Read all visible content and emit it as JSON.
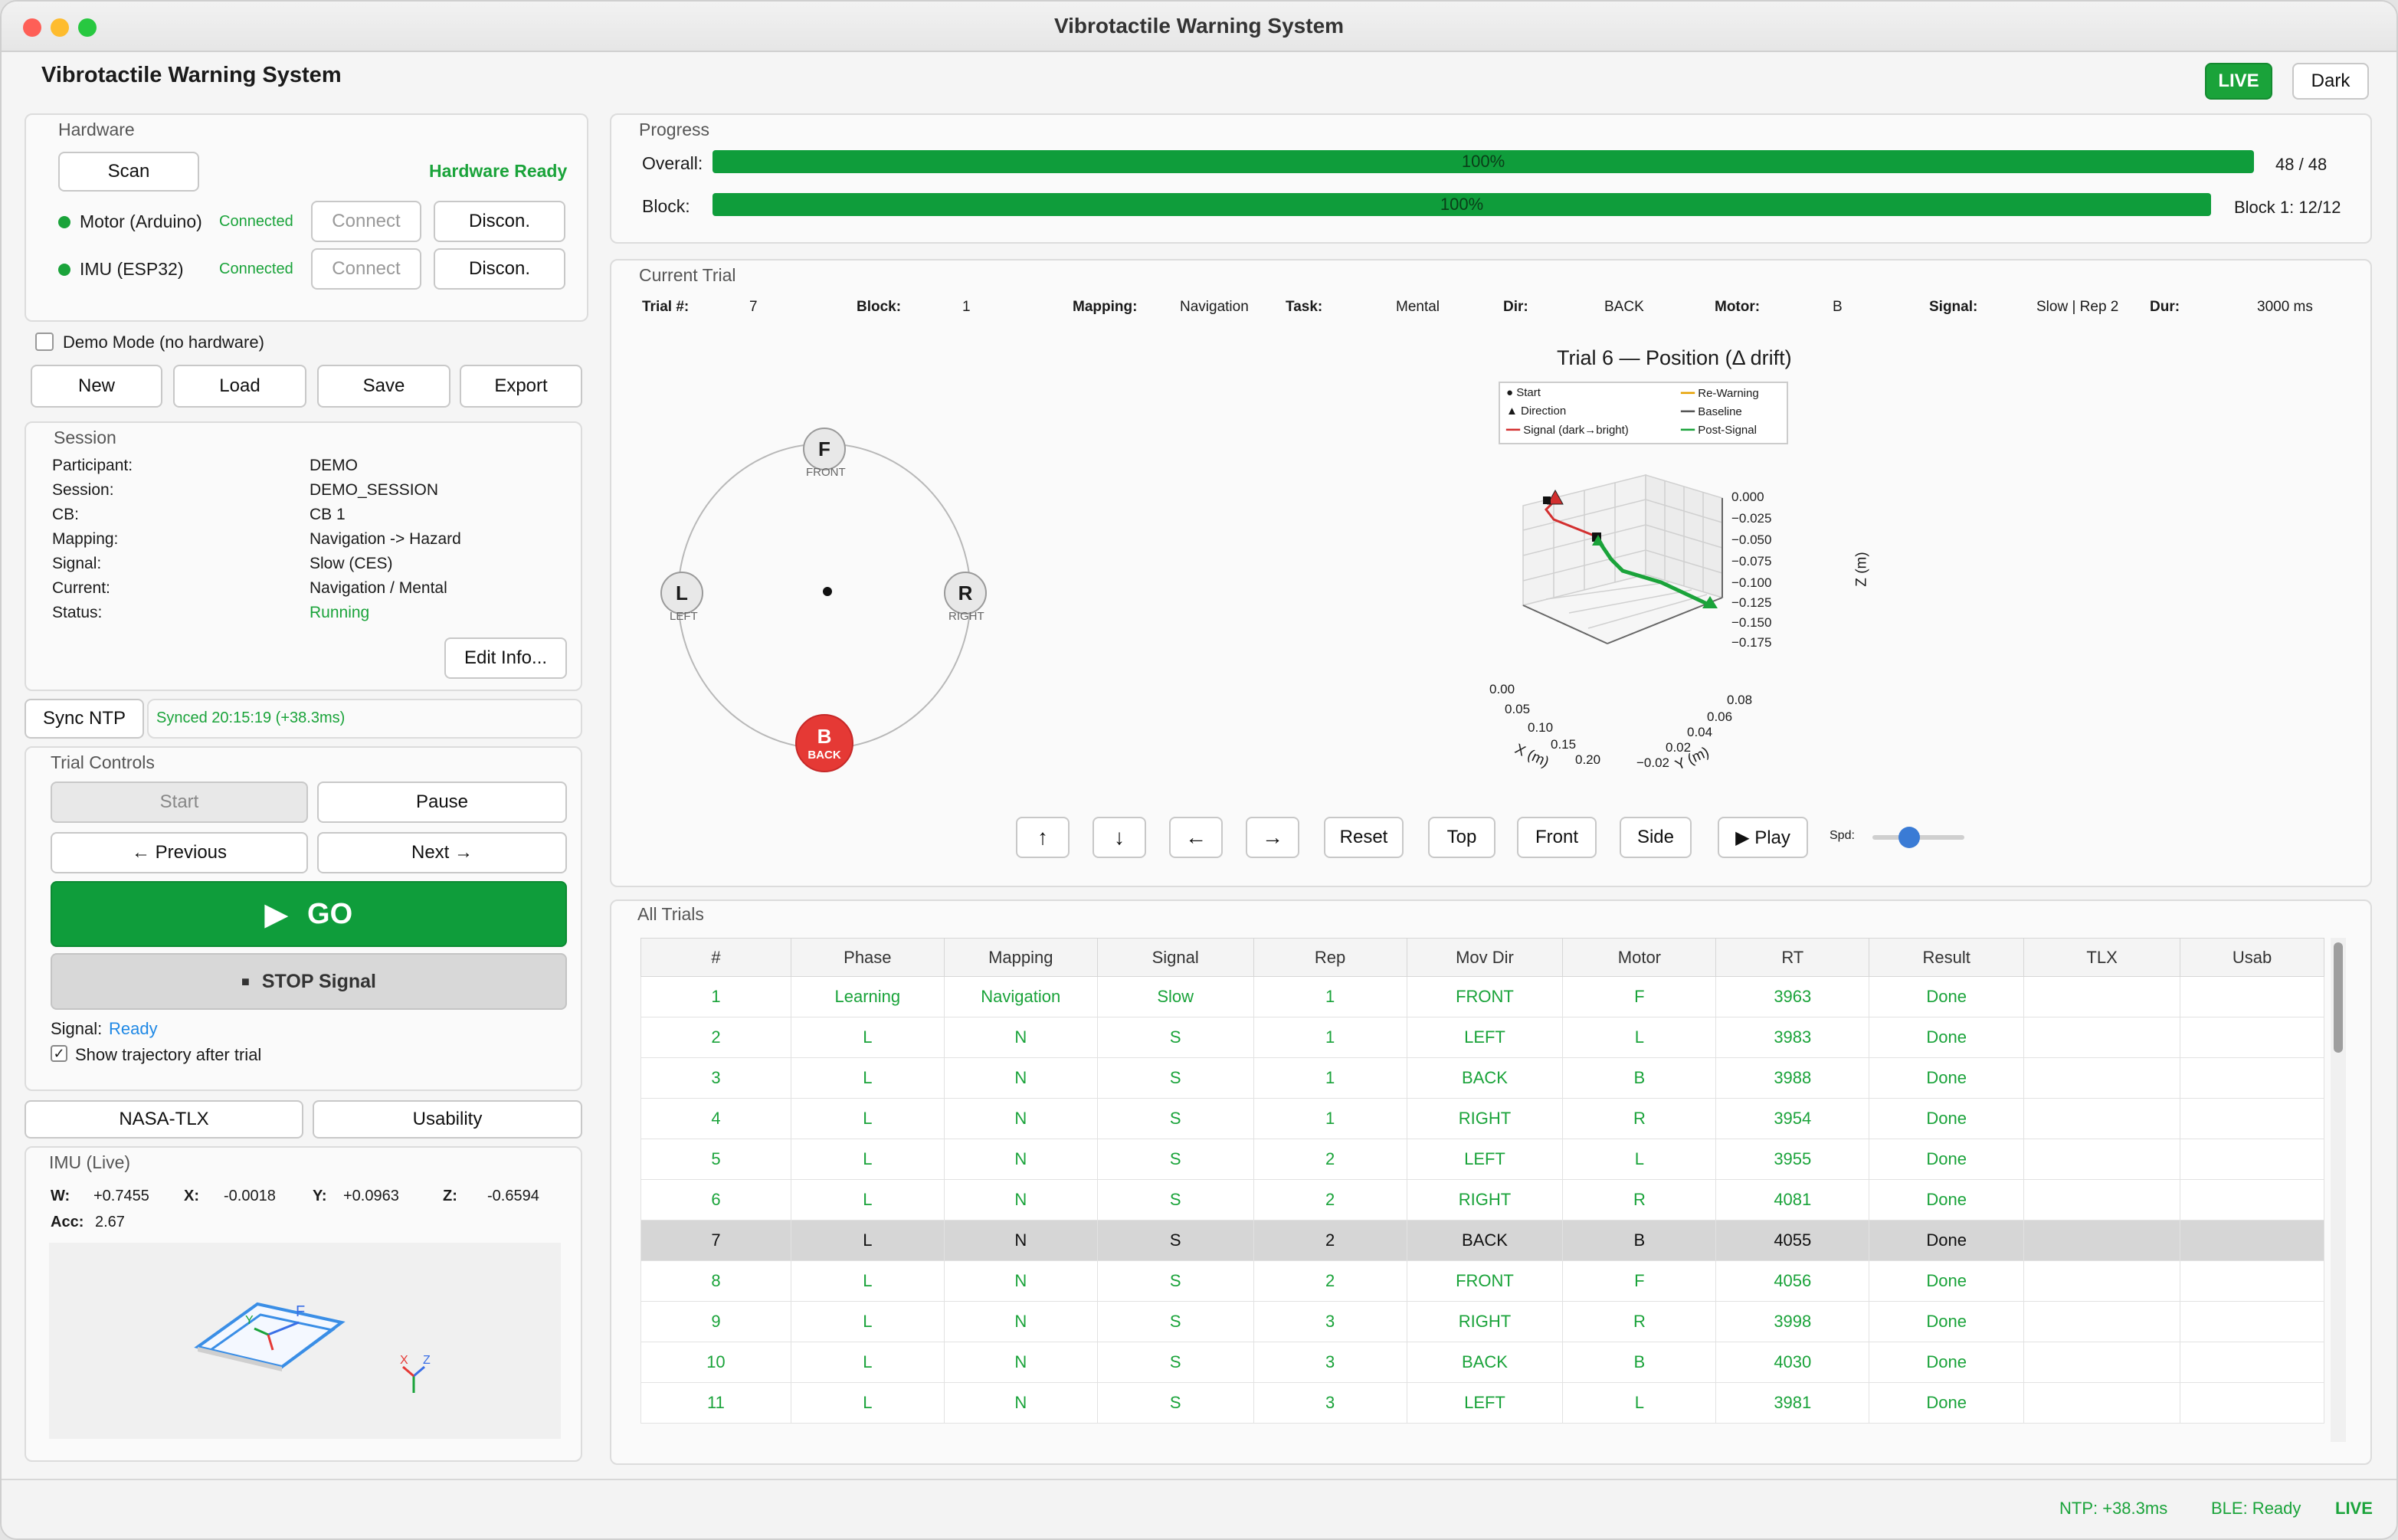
{
  "window": {
    "title": "Vibrotactile Warning System"
  },
  "app": {
    "title": "Vibrotactile Warning System",
    "live_badge": "LIVE",
    "theme_button": "Dark"
  },
  "hardware": {
    "title": "Hardware",
    "scan": "Scan",
    "status": "Hardware Ready",
    "devices": [
      {
        "name": "Motor (Arduino)",
        "status": "Connected",
        "connect": "Connect",
        "disconnect": "Discon."
      },
      {
        "name": "IMU (ESP32)",
        "status": "Connected",
        "connect": "Connect",
        "disconnect": "Discon."
      }
    ]
  },
  "demo": {
    "label": "Demo Mode (no hardware)",
    "checked": false
  },
  "file_buttons": {
    "new": "New",
    "load": "Load",
    "save": "Save",
    "export": "Export"
  },
  "session": {
    "title": "Session",
    "rows": [
      {
        "k": "Participant:",
        "v": "DEMO"
      },
      {
        "k": "Session:",
        "v": "DEMO_SESSION"
      },
      {
        "k": "CB:",
        "v": "CB 1"
      },
      {
        "k": "Mapping:",
        "v": "Navigation -> Hazard"
      },
      {
        "k": "Signal:",
        "v": "Slow (CES)"
      },
      {
        "k": "Current:",
        "v": "Navigation / Mental"
      },
      {
        "k": "Status:",
        "v": "Running"
      }
    ],
    "edit": "Edit Info..."
  },
  "sync": {
    "button": "Sync NTP",
    "status": "Synced 20:15:19 (+38.3ms)"
  },
  "trial_controls": {
    "title": "Trial Controls",
    "start": "Start",
    "pause": "Pause",
    "previous": "← Previous",
    "next": "Next →",
    "go": "GO",
    "stop": "STOP Signal",
    "signal_label": "Signal:",
    "signal_value": "Ready",
    "show_traj": "Show trajectory after trial",
    "show_traj_checked": true
  },
  "tabs": {
    "tlx": "NASA-TLX",
    "usability": "Usability"
  },
  "imu": {
    "title": "IMU (Live)",
    "w_label": "W:",
    "w": "+0.7455",
    "x_label": "X:",
    "x": "-0.0018",
    "y_label": "Y:",
    "y": "+0.0963",
    "z_label": "Z:",
    "z": "-0.6594",
    "acc_label": "Acc:",
    "acc": "2.67"
  },
  "progress": {
    "title": "Progress",
    "overall_label": "Overall:",
    "overall_pct": "100%",
    "overall_fraction": 1.0,
    "overall_count": "48 / 48",
    "block_label": "Block:",
    "block_pct": "100%",
    "block_fraction": 1.0,
    "block_count": "Block 1: 12/12"
  },
  "current_trial": {
    "title": "Current Trial",
    "fields": [
      {
        "k": "Trial #:",
        "v": "7"
      },
      {
        "k": "Block:",
        "v": "1"
      },
      {
        "k": "Mapping:",
        "v": "Navigation"
      },
      {
        "k": "Task:",
        "v": "Mental"
      },
      {
        "k": "Dir:",
        "v": "BACK"
      },
      {
        "k": "Motor:",
        "v": "B"
      },
      {
        "k": "Signal:",
        "v": "Slow | Rep 2"
      },
      {
        "k": "Dur:",
        "v": "3000 ms"
      }
    ]
  },
  "compass": {
    "front": {
      "letter": "F",
      "label": "FRONT"
    },
    "left": {
      "letter": "L",
      "label": "LEFT"
    },
    "right": {
      "letter": "R",
      "label": "RIGHT"
    },
    "back": {
      "letter": "B",
      "label": "BACK"
    },
    "active": "back"
  },
  "plot3d": {
    "title": "Trial 6 — Position (Δ drift)",
    "legend": [
      "Start",
      "Direction",
      "Signal (dark→bright)",
      "Re-Warning",
      "Baseline",
      "Post-Signal"
    ],
    "xlabel": "X (m)",
    "ylabel": "Y (m)",
    "zlabel": "Z (m)",
    "xticks": [
      "0.00",
      "0.05",
      "0.10",
      "0.15",
      "0.20"
    ],
    "yticks": [
      "−0.02",
      "0.02",
      "0.04",
      "0.06",
      "0.08"
    ],
    "zticks": [
      "0.000",
      "−0.025",
      "−0.050",
      "−0.075",
      "−0.100",
      "−0.125",
      "−0.150",
      "−0.175"
    ]
  },
  "view_controls": {
    "up": "↑",
    "down": "↓",
    "left": "←",
    "right": "→",
    "reset": "Reset",
    "top": "Top",
    "front": "Front",
    "side": "Side",
    "play": "▶ Play",
    "speed_label": "Spd:",
    "speed": 0.4
  },
  "all_trials": {
    "title": "All Trials",
    "columns": [
      "#",
      "Phase",
      "Mapping",
      "Signal",
      "Rep",
      "Mov Dir",
      "Motor",
      "RT",
      "Result",
      "TLX",
      "Usab"
    ],
    "rows": [
      [
        "1",
        "Learning",
        "Navigation",
        "Slow",
        "1",
        "FRONT",
        "F",
        "3963",
        "Done",
        "",
        ""
      ],
      [
        "2",
        "L",
        "N",
        "S",
        "1",
        "LEFT",
        "L",
        "3983",
        "Done",
        "",
        ""
      ],
      [
        "3",
        "L",
        "N",
        "S",
        "1",
        "BACK",
        "B",
        "3988",
        "Done",
        "",
        ""
      ],
      [
        "4",
        "L",
        "N",
        "S",
        "1",
        "RIGHT",
        "R",
        "3954",
        "Done",
        "",
        ""
      ],
      [
        "5",
        "L",
        "N",
        "S",
        "2",
        "LEFT",
        "L",
        "3955",
        "Done",
        "",
        ""
      ],
      [
        "6",
        "L",
        "N",
        "S",
        "2",
        "RIGHT",
        "R",
        "4081",
        "Done",
        "",
        ""
      ],
      [
        "7",
        "L",
        "N",
        "S",
        "2",
        "BACK",
        "B",
        "4055",
        "Done",
        "",
        ""
      ],
      [
        "8",
        "L",
        "N",
        "S",
        "2",
        "FRONT",
        "F",
        "4056",
        "Done",
        "",
        ""
      ],
      [
        "9",
        "L",
        "N",
        "S",
        "3",
        "RIGHT",
        "R",
        "3998",
        "Done",
        "",
        ""
      ],
      [
        "10",
        "L",
        "N",
        "S",
        "3",
        "BACK",
        "B",
        "4030",
        "Done",
        "",
        ""
      ],
      [
        "11",
        "L",
        "N",
        "S",
        "3",
        "LEFT",
        "L",
        "3981",
        "Done",
        "",
        ""
      ]
    ],
    "selected_row": 7
  },
  "statusbar": {
    "ntp": "NTP: +38.3ms",
    "ble": "BLE: Ready",
    "live": "LIVE"
  },
  "colors": {
    "green": "#1aa33a",
    "bar": "#0f9d3b",
    "red": "#e53935",
    "accent": "#1e88e5"
  }
}
